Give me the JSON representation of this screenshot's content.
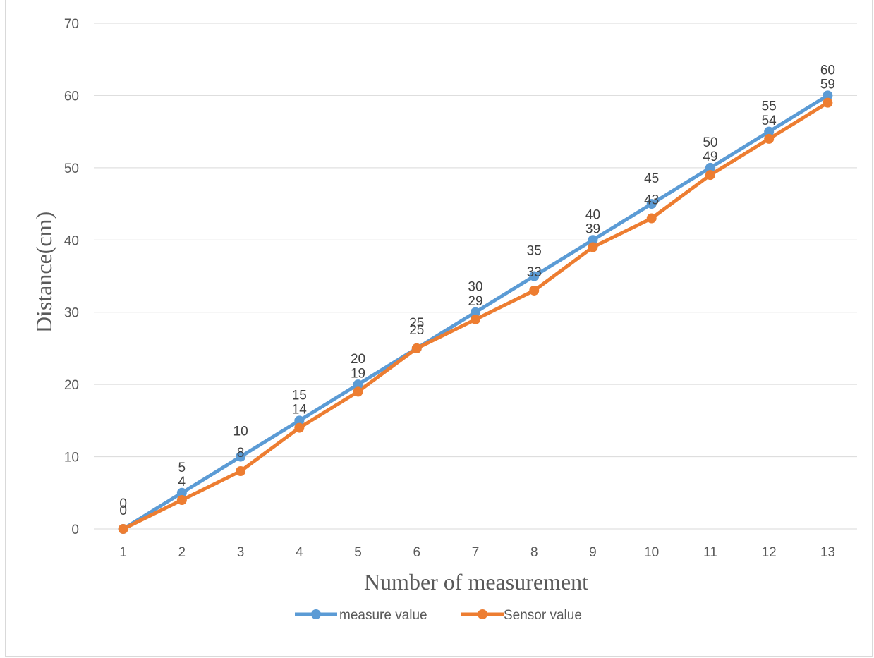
{
  "chart_data": {
    "type": "line",
    "title": "",
    "xlabel": "Number of measurement",
    "ylabel": "Distance(cm)",
    "categories": [
      "1",
      "2",
      "3",
      "4",
      "5",
      "6",
      "7",
      "8",
      "9",
      "10",
      "11",
      "12",
      "13"
    ],
    "ylim": [
      0,
      70
    ],
    "yticks": [
      0,
      10,
      20,
      30,
      40,
      50,
      60,
      70
    ],
    "grid": true,
    "legend_position": "bottom",
    "series": [
      {
        "name": "measure value",
        "color": "#5b9bd5",
        "values": [
          0,
          5,
          10,
          15,
          20,
          25,
          30,
          35,
          40,
          45,
          50,
          55,
          60
        ]
      },
      {
        "name": "Sensor value",
        "color": "#ed7d31",
        "values": [
          0,
          4,
          8,
          14,
          19,
          25,
          29,
          33,
          39,
          43,
          49,
          54,
          59
        ]
      }
    ]
  }
}
